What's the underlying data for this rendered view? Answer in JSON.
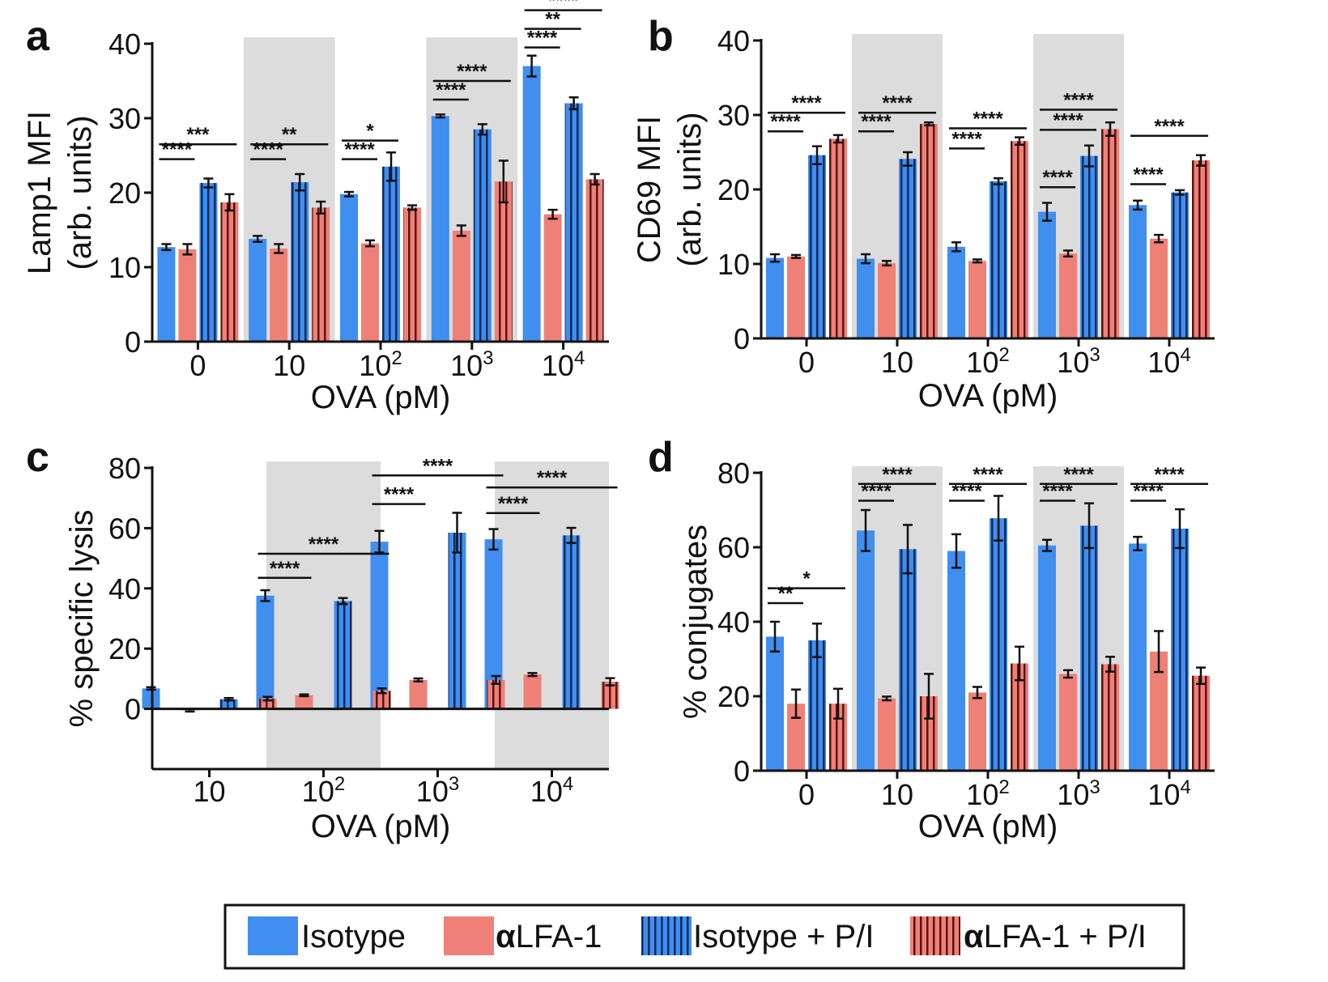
{
  "legend": {
    "items": [
      {
        "label": "Isotype",
        "bold_prefix": "",
        "rest": "Isotype",
        "color": "#3f8ef0",
        "hatch": false
      },
      {
        "label": "αLFA-1",
        "bold_prefix": "α",
        "rest": "LFA-1",
        "color": "#ef8078",
        "hatch": false
      },
      {
        "label": "Isotype + P/I",
        "bold_prefix": "",
        "rest": "Isotype + P/I",
        "color": "#3f8ef0",
        "hatch": true
      },
      {
        "label": "αLFA-1 + P/I",
        "bold_prefix": "α",
        "rest": "LFA-1 + P/I",
        "color": "#ef8078",
        "hatch": true
      }
    ]
  },
  "chart_data": [
    {
      "panel": "a",
      "type": "bar",
      "ylabel_line1": "Lamp1 MFI",
      "ylabel_line2": "(arb. units)",
      "xlabel": "OVA (pM)",
      "categories": [
        {
          "base": "0",
          "exp": ""
        },
        {
          "base": "10",
          "exp": ""
        },
        {
          "base": "10",
          "exp": "2"
        },
        {
          "base": "10",
          "exp": "3"
        },
        {
          "base": "10",
          "exp": "4"
        }
      ],
      "ylim": [
        0,
        40
      ],
      "yticks": [
        0,
        10,
        20,
        30,
        40
      ],
      "shaded_groups": [
        1,
        3
      ],
      "series": [
        {
          "values": [
            12.7,
            13.8,
            19.8,
            30.3,
            37.0
          ],
          "errors": [
            0.4,
            0.4,
            0.3,
            0.2,
            1.4
          ]
        },
        {
          "values": [
            12.4,
            12.5,
            13.2,
            14.9,
            17.1
          ],
          "errors": [
            0.7,
            0.6,
            0.4,
            0.7,
            0.6
          ]
        },
        {
          "values": [
            21.3,
            21.4,
            23.5,
            28.5,
            32.0
          ],
          "errors": [
            0.6,
            1.1,
            1.9,
            0.7,
            0.8
          ]
        },
        {
          "values": [
            18.7,
            18.0,
            18.0,
            21.5,
            21.8
          ],
          "errors": [
            1.1,
            0.8,
            0.3,
            2.8,
            0.7
          ]
        }
      ],
      "significance": [
        {
          "group": 0,
          "from": 0,
          "to": 1,
          "y": 24.5,
          "label": "****"
        },
        {
          "group": 0,
          "from": 0,
          "to": 3,
          "y": 26.5,
          "label": "***"
        },
        {
          "group": 1,
          "from": 0,
          "to": 1,
          "y": 24.5,
          "label": "****"
        },
        {
          "group": 1,
          "from": 0,
          "to": 3,
          "y": 26.5,
          "label": "**"
        },
        {
          "group": 2,
          "from": 0,
          "to": 1,
          "y": 24.5,
          "label": "****"
        },
        {
          "group": 2,
          "from": 0,
          "to": 2,
          "y": 27.0,
          "label": "*"
        },
        {
          "group": 3,
          "from": 0,
          "to": 1,
          "y": 32.5,
          "label": "****"
        },
        {
          "group": 3,
          "from": 0,
          "to": 3,
          "y": 35.0,
          "label": "****"
        },
        {
          "group": 4,
          "from": 0,
          "to": 1,
          "y": 39.5,
          "label": "****"
        },
        {
          "group": 4,
          "from": 0,
          "to": 2,
          "y": 42.0,
          "label": "**"
        },
        {
          "group": 4,
          "from": 0,
          "to": 3,
          "y": 44.5,
          "label": "****"
        }
      ]
    },
    {
      "panel": "b",
      "type": "bar",
      "ylabel_line1": "CD69 MFI",
      "ylabel_line2": "(arb. units)",
      "xlabel": "OVA (pM)",
      "categories": [
        {
          "base": "0",
          "exp": ""
        },
        {
          "base": "10",
          "exp": ""
        },
        {
          "base": "10",
          "exp": "2"
        },
        {
          "base": "10",
          "exp": "3"
        },
        {
          "base": "10",
          "exp": "4"
        }
      ],
      "ylim": [
        0,
        40
      ],
      "yticks": [
        0,
        10,
        20,
        30,
        40
      ],
      "shaded_groups": [
        1,
        3
      ],
      "series": [
        {
          "values": [
            10.8,
            10.7,
            12.3,
            17.0,
            17.9
          ],
          "errors": [
            0.5,
            0.6,
            0.6,
            1.2,
            0.6
          ]
        },
        {
          "values": [
            11.0,
            10.1,
            10.4,
            11.4,
            13.4
          ],
          "errors": [
            0.2,
            0.3,
            0.2,
            0.4,
            0.5
          ]
        },
        {
          "values": [
            24.6,
            24.1,
            21.1,
            24.5,
            19.6
          ],
          "errors": [
            1.2,
            0.9,
            0.4,
            1.4,
            0.3
          ]
        },
        {
          "values": [
            26.8,
            28.8,
            26.5,
            28.1,
            23.9
          ],
          "errors": [
            0.5,
            0.2,
            0.5,
            0.9,
            0.7
          ]
        }
      ],
      "significance": [
        {
          "group": 0,
          "from": 0,
          "to": 1,
          "y": 27.8,
          "label": "****"
        },
        {
          "group": 0,
          "from": 0,
          "to": 3,
          "y": 30.3,
          "label": "****"
        },
        {
          "group": 1,
          "from": 0,
          "to": 1,
          "y": 27.8,
          "label": "****"
        },
        {
          "group": 1,
          "from": 0,
          "to": 3,
          "y": 30.3,
          "label": "****"
        },
        {
          "group": 2,
          "from": 0,
          "to": 1,
          "y": 25.5,
          "label": "****"
        },
        {
          "group": 2,
          "from": 0,
          "to": 3,
          "y": 28.2,
          "label": "****"
        },
        {
          "group": 3,
          "from": 0,
          "to": 1,
          "y": 20.3,
          "label": "****"
        },
        {
          "group": 3,
          "from": 0,
          "to": 2,
          "y": 28.0,
          "label": "****"
        },
        {
          "group": 3,
          "from": 0,
          "to": 3,
          "y": 30.7,
          "label": "****"
        },
        {
          "group": 4,
          "from": 0,
          "to": 1,
          "y": 20.7,
          "label": "****"
        },
        {
          "group": 4,
          "from": 0,
          "to": 3,
          "y": 27.2,
          "label": "****"
        }
      ]
    },
    {
      "panel": "c",
      "type": "bar",
      "ylabel_line1": "% specific lysis",
      "ylabel_line2": "",
      "xlabel": "OVA (pM)",
      "categories": [
        {
          "base": "10",
          "exp": ""
        },
        {
          "base": "10",
          "exp": "2"
        },
        {
          "base": "10",
          "exp": "3"
        },
        {
          "base": "10",
          "exp": "4"
        }
      ],
      "ylim": [
        -20,
        80
      ],
      "yticks": [
        0,
        20,
        40,
        60,
        80
      ],
      "zero_line": true,
      "shaded_groups": [
        1,
        3
      ],
      "series": [
        {
          "values": [
            6.8,
            37.6,
            55.5,
            56.3
          ],
          "errors": [
            0.4,
            1.8,
            3.6,
            3.4
          ]
        },
        {
          "values": [
            -0.5,
            4.5,
            9.6,
            11.4
          ],
          "errors": [
            0.4,
            0.3,
            0.5,
            0.5
          ]
        },
        {
          "values": [
            3.2,
            35.8,
            58.5,
            57.6
          ],
          "errors": [
            0.4,
            1.0,
            6.6,
            2.5
          ]
        },
        {
          "values": [
            3.4,
            6.0,
            9.6,
            9.0
          ],
          "errors": [
            0.6,
            0.8,
            1.3,
            1.2
          ]
        }
      ],
      "significance": [
        {
          "group": 1,
          "from": 0,
          "to": 1,
          "y": 43.5,
          "label": "****"
        },
        {
          "group": 1,
          "from": 0,
          "to": 3,
          "y": 51.5,
          "label": "****"
        },
        {
          "group": 2,
          "from": 0,
          "to": 1,
          "y": 68.0,
          "label": "****"
        },
        {
          "group": 2,
          "from": 0,
          "to": 3,
          "y": 77.5,
          "label": "****"
        },
        {
          "group": 3,
          "from": 0,
          "to": 1,
          "y": 65.0,
          "label": "****"
        },
        {
          "group": 3,
          "from": 0,
          "to": 3,
          "y": 73.5,
          "label": "****"
        }
      ]
    },
    {
      "panel": "d",
      "type": "bar",
      "ylabel_line1": "% conjugates",
      "ylabel_line2": "",
      "xlabel": "OVA (pM)",
      "categories": [
        {
          "base": "0",
          "exp": ""
        },
        {
          "base": "10",
          "exp": ""
        },
        {
          "base": "10",
          "exp": "2"
        },
        {
          "base": "10",
          "exp": "3"
        },
        {
          "base": "10",
          "exp": "4"
        }
      ],
      "ylim": [
        0,
        80
      ],
      "yticks": [
        0,
        20,
        40,
        60,
        80
      ],
      "shaded_groups": [
        1,
        3
      ],
      "series": [
        {
          "values": [
            36.0,
            64.5,
            59.0,
            60.5,
            61.0
          ],
          "errors": [
            4.0,
            5.5,
            4.5,
            1.5,
            1.8
          ]
        },
        {
          "values": [
            18.0,
            19.4,
            21.0,
            26.0,
            32.0
          ],
          "errors": [
            3.8,
            0.5,
            1.5,
            1.0,
            5.5
          ]
        },
        {
          "values": [
            35.0,
            59.5,
            67.8,
            65.8,
            65.0
          ],
          "errors": [
            4.5,
            6.5,
            6.0,
            6.0,
            5.2
          ]
        },
        {
          "values": [
            18.0,
            20.0,
            28.8,
            28.6,
            25.5
          ],
          "errors": [
            4.0,
            6.0,
            4.5,
            2.0,
            2.2
          ]
        }
      ],
      "significance": [
        {
          "group": 0,
          "from": 0,
          "to": 1,
          "y": 45.0,
          "label": "**"
        },
        {
          "group": 0,
          "from": 0,
          "to": 3,
          "y": 49.0,
          "label": "*"
        },
        {
          "group": 1,
          "from": 0,
          "to": 1,
          "y": 72.5,
          "label": "****"
        },
        {
          "group": 1,
          "from": 0,
          "to": 3,
          "y": 77.0,
          "label": "****"
        },
        {
          "group": 2,
          "from": 0,
          "to": 1,
          "y": 72.5,
          "label": "****"
        },
        {
          "group": 2,
          "from": 0,
          "to": 3,
          "y": 77.0,
          "label": "****"
        },
        {
          "group": 3,
          "from": 0,
          "to": 1,
          "y": 72.5,
          "label": "****"
        },
        {
          "group": 3,
          "from": 0,
          "to": 3,
          "y": 77.0,
          "label": "****"
        },
        {
          "group": 4,
          "from": 0,
          "to": 1,
          "y": 72.5,
          "label": "****"
        },
        {
          "group": 4,
          "from": 0,
          "to": 3,
          "y": 77.0,
          "label": "****"
        }
      ]
    }
  ]
}
